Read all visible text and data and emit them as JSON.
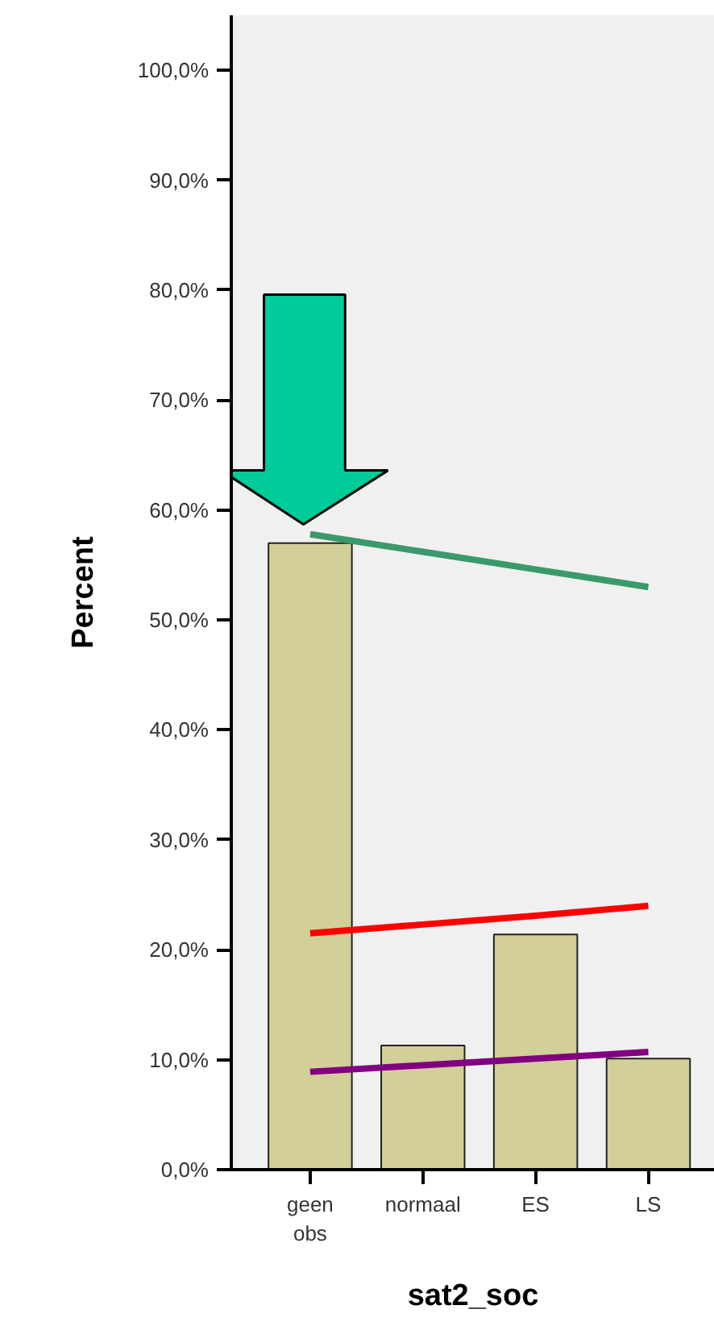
{
  "chart_data": {
    "type": "bar",
    "xlabel": "sat2_soc",
    "ylabel": "Percent",
    "categories": [
      "geen\nobs",
      "normaal",
      "ES",
      "LS"
    ],
    "values": [
      57.0,
      11.3,
      21.4,
      10.1
    ],
    "color": "#d3cf98",
    "ylim": [
      0,
      105
    ],
    "yticks": [
      {
        "value": 0,
        "label": "0,0%"
      },
      {
        "value": 10,
        "label": "10,0%"
      },
      {
        "value": 20,
        "label": "20,0%"
      },
      {
        "value": 30,
        "label": "30,0%"
      },
      {
        "value": 40,
        "label": "40,0%"
      },
      {
        "value": 50,
        "label": "50,0%"
      },
      {
        "value": 60,
        "label": "60,0%"
      },
      {
        "value": 70,
        "label": "70,0%"
      },
      {
        "value": 80,
        "label": "80,0%"
      },
      {
        "value": 90,
        "label": "90,0%"
      },
      {
        "value": 100,
        "label": "100,0%"
      }
    ],
    "series": [
      {
        "type": "line",
        "color": "#3a9a6a",
        "values": [
          57.8,
          56.2,
          54.6,
          53.0
        ]
      },
      {
        "type": "line",
        "color": "#ff0000",
        "values": [
          21.5,
          22.3,
          23.1,
          24.0
        ]
      },
      {
        "type": "line",
        "color": "#800080",
        "values": [
          8.9,
          9.5,
          10.1,
          10.7
        ]
      }
    ],
    "grid": false
  }
}
